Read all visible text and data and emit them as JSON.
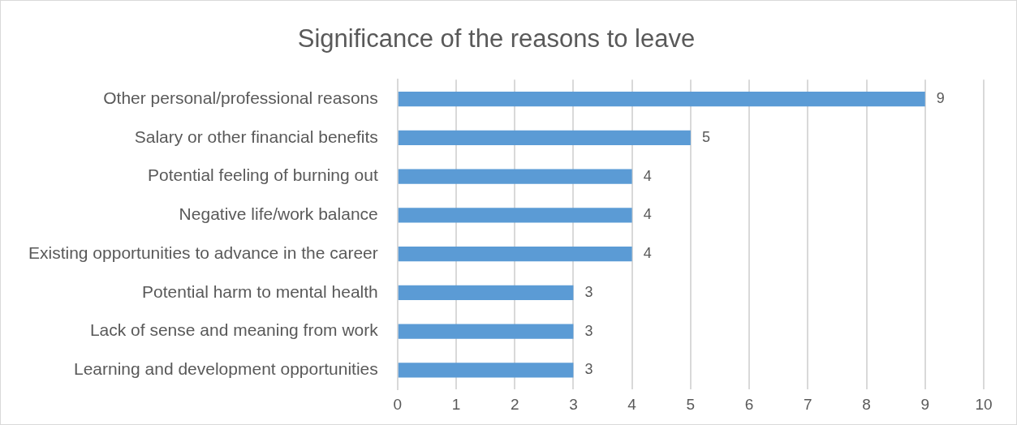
{
  "chart_data": {
    "type": "bar",
    "orientation": "horizontal",
    "title": "Significance of the reasons to leave",
    "categories": [
      "Other personal/professional reasons",
      "Salary or other financial benefits",
      "Potential feeling of burning out",
      "Negative life/work balance",
      "Existing opportunities to advance in the career",
      "Potential harm to mental health",
      "Lack of sense and meaning from work",
      "Learning and development opportunities"
    ],
    "values": [
      9,
      5,
      4,
      4,
      4,
      3,
      3,
      3
    ],
    "color": "#5b9bd5",
    "xlim": [
      0,
      10
    ],
    "xticks": [
      0,
      1,
      2,
      3,
      4,
      5,
      6,
      7,
      8,
      9,
      10
    ],
    "grid": "x",
    "data_labels": true
  }
}
